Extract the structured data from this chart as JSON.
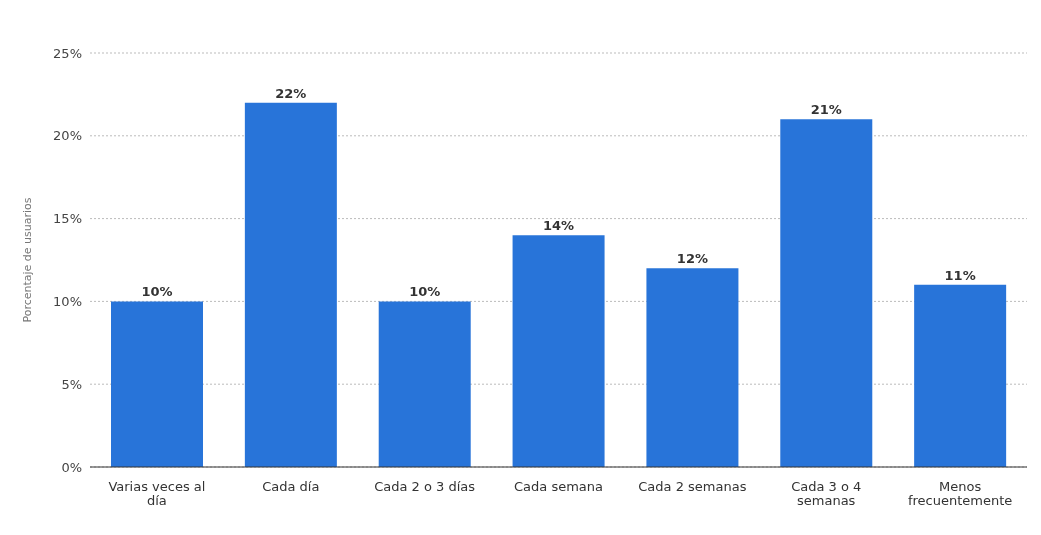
{
  "chart_data": {
    "type": "bar",
    "ylabel": "Porcentaje de usuarios",
    "categories": [
      "Varias veces al día",
      "Cada día",
      "Cada 2 o 3 días",
      "Cada semana",
      "Cada 2 semanas",
      "Cada 3 o 4 semanas",
      "Menos frecuentemente"
    ],
    "values": [
      10,
      22,
      10,
      14,
      12,
      21,
      11
    ],
    "value_labels": [
      "10%",
      "22%",
      "10%",
      "14%",
      "12%",
      "21%",
      "11%"
    ],
    "color": "#2874d9",
    "ylim": [
      0,
      25
    ],
    "yticks": [
      {
        "value": 0,
        "label": "0%"
      },
      {
        "value": 5,
        "label": "5%"
      },
      {
        "value": 10,
        "label": "10%"
      },
      {
        "value": 15,
        "label": "15%"
      },
      {
        "value": 20,
        "label": "20%"
      },
      {
        "value": 25,
        "label": "25%"
      }
    ],
    "grid": "y"
  }
}
